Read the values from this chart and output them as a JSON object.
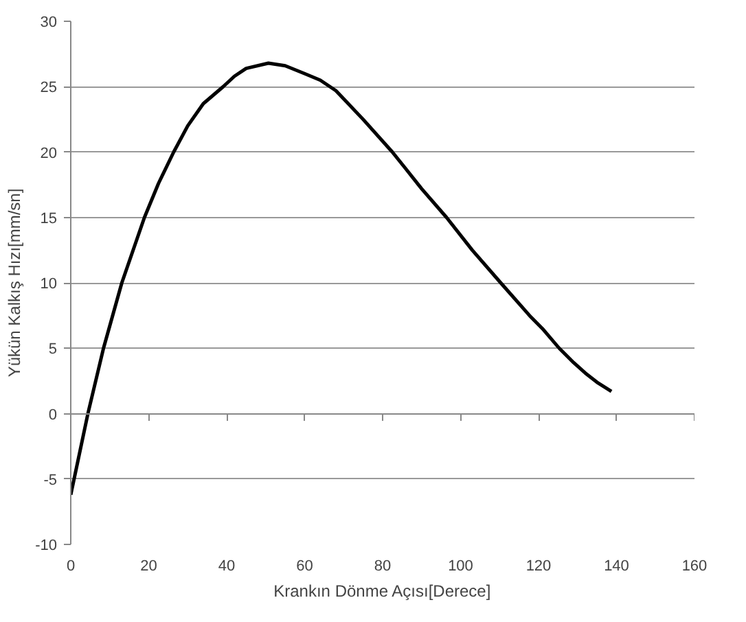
{
  "chart_data": {
    "type": "line",
    "xlabel": "Krankın Dönme Açısı[Derece]",
    "ylabel": "Yükün Kalkış Hızı[mm/sn]",
    "x": [
      0,
      4.4,
      8.4,
      13.1,
      18.9,
      22.5,
      26.4,
      30,
      34,
      39.1,
      42,
      45,
      50.7,
      55,
      60,
      64,
      68,
      75,
      82.5,
      86,
      90,
      96.4,
      103,
      110.3,
      118,
      121,
      125.3,
      129,
      132,
      135,
      138.7
    ],
    "series": [
      {
        "color": "#000000",
        "values": [
          -6.2,
          0,
          5,
          10,
          15,
          17.6,
          20,
          22,
          23.7,
          25,
          25.8,
          26.4,
          26.8,
          26.6,
          26,
          25.5,
          24.7,
          22.5,
          20,
          18.7,
          17.2,
          15,
          12.5,
          10,
          7.4,
          6.5,
          5,
          3.9,
          3.1,
          2.4,
          1.7
        ]
      }
    ],
    "xlim": [
      0,
      160
    ],
    "xticks": [
      0,
      20,
      40,
      60,
      80,
      100,
      120,
      140,
      160
    ],
    "ylim": [
      -10,
      30
    ],
    "yticks": [
      -10,
      -5,
      0,
      5,
      10,
      15,
      20,
      25,
      30
    ],
    "grid": "y",
    "marker": "none",
    "line_style": "solid"
  }
}
